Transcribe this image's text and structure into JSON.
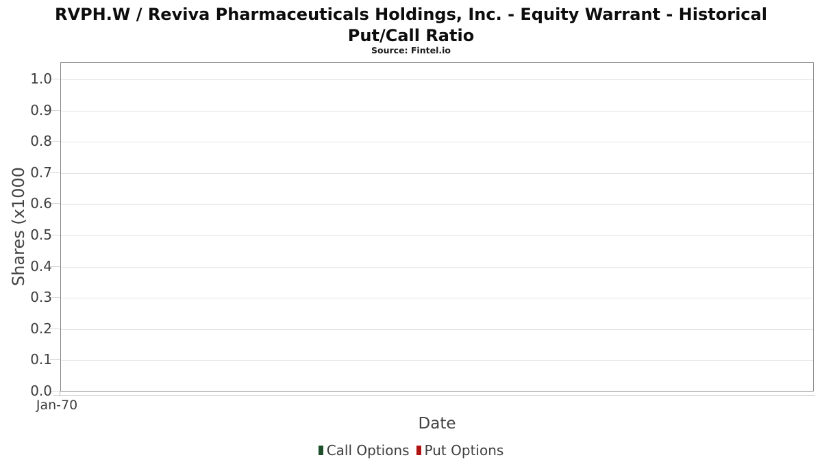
{
  "header": {
    "title_lines": [
      "RVPH.W / Reviva Pharmaceuticals Holdings, Inc. - Equity Warrant - Historical",
      "Put/Call Ratio"
    ],
    "subtitle": "Source: Fintel.io"
  },
  "chart_data": {
    "type": "line",
    "title": "RVPH.W / Reviva Pharmaceuticals Holdings, Inc. - Equity Warrant - Historical Put/Call Ratio",
    "subtitle": "Source: Fintel.io",
    "xlabel": "Date",
    "ylabel": "Shares (x1000",
    "ylim": [
      0.0,
      1.05
    ],
    "y_ticks": [
      0.0,
      0.1,
      0.2,
      0.3,
      0.4,
      0.5,
      0.6,
      0.7,
      0.8,
      0.9,
      1.0
    ],
    "y_tick_labels": [
      "0.0",
      "0.1",
      "0.2",
      "0.3",
      "0.4",
      "0.5",
      "0.6",
      "0.7",
      "0.8",
      "0.9",
      "1.0"
    ],
    "x_tick_labels": [
      "Jan-70"
    ],
    "grid": "horizontal",
    "legend_position": "bottom-center",
    "series": [
      {
        "name": "Call Options",
        "color": "#1d4f2b",
        "x": [],
        "values": []
      },
      {
        "name": "Put Options",
        "color": "#b11212",
        "x": [],
        "values": []
      }
    ]
  }
}
